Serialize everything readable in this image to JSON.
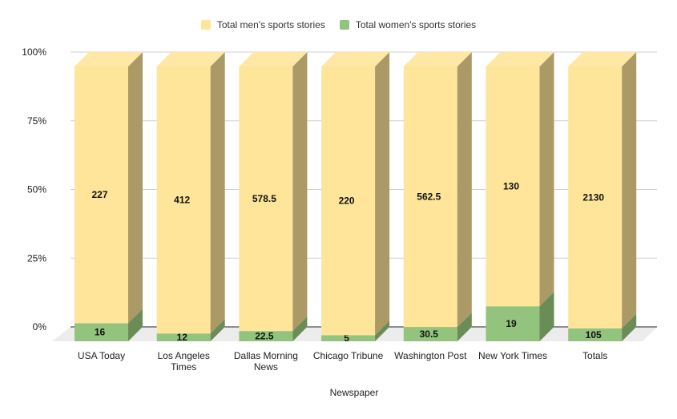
{
  "chart_data": {
    "type": "bar",
    "stacked": "percent",
    "three_d": true,
    "categories": [
      "USA Today",
      "Los Angeles Times",
      "Dallas Morning News",
      "Chicago Tribune",
      "Washington Post",
      "New York Times",
      "Totals"
    ],
    "category_lines": [
      [
        "USA Today"
      ],
      [
        "Los Angeles",
        "Times"
      ],
      [
        "Dallas Morning",
        "News"
      ],
      [
        "Chicago Tribune"
      ],
      [
        "Washington Post"
      ],
      [
        "New York Times"
      ],
      [
        "Totals"
      ]
    ],
    "series": [
      {
        "name": "Total women's sports stories",
        "color": "#93c47d",
        "side_color": "#6a8c57",
        "values": [
          16,
          12,
          22.5,
          5,
          30.5,
          19,
          105
        ],
        "labels": [
          "16",
          "12",
          "22.5",
          "5",
          "30.5",
          "19",
          "105"
        ]
      },
      {
        "name": "Total men's sports stories",
        "color": "#ffe599",
        "side_color": "#ab9966",
        "values": [
          227,
          412,
          578.5,
          220,
          562.5,
          130,
          2130
        ],
        "labels": [
          "227",
          "412",
          "578.5",
          "220",
          "562.5",
          "130",
          "2130"
        ]
      }
    ],
    "legend_order": [
      1,
      0
    ],
    "legend_position": "top",
    "yticks": [
      "0%",
      "25%",
      "50%",
      "75%",
      "100%"
    ],
    "ylim": [
      0,
      100
    ],
    "xlabel": "Newspaper",
    "ylabel": "",
    "title": "",
    "grid": true
  }
}
